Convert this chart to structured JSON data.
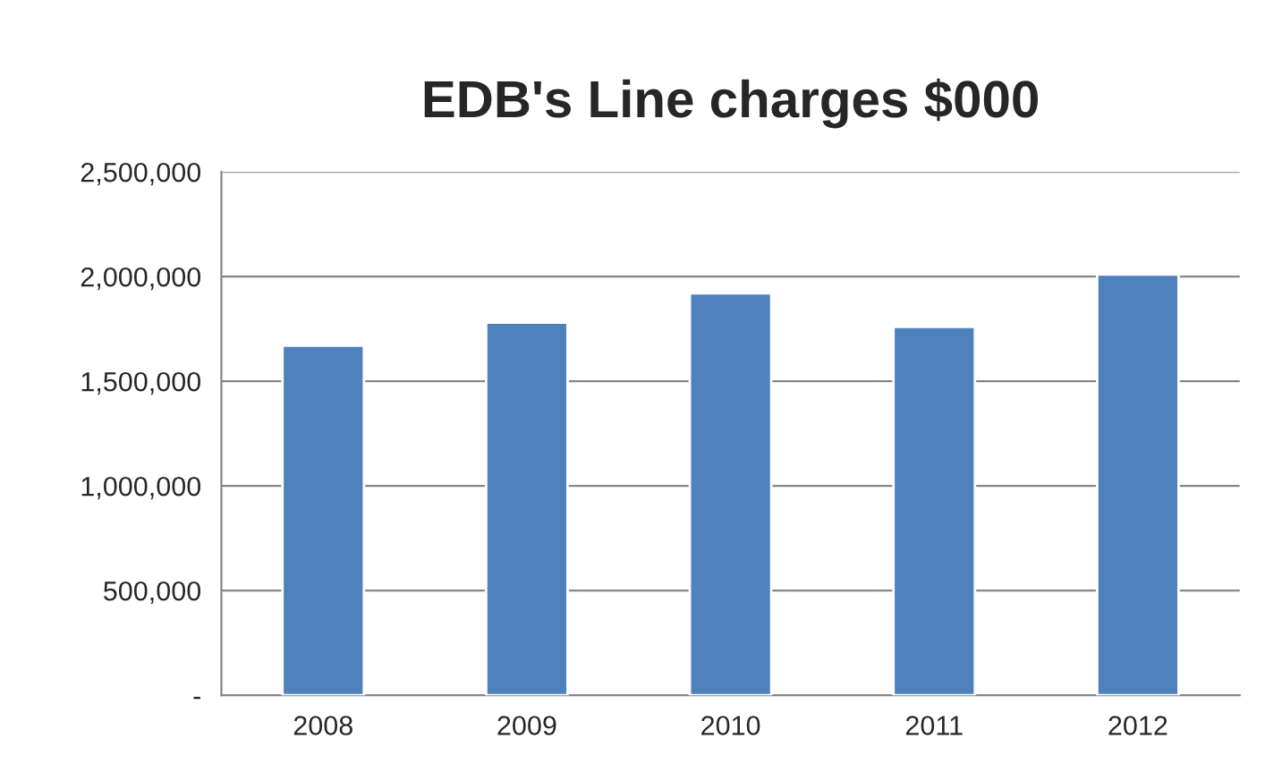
{
  "chart_data": {
    "type": "bar",
    "title": "EDB's Line charges $000",
    "categories": [
      "2008",
      "2009",
      "2010",
      "2011",
      "2012"
    ],
    "values": [
      1670000,
      1780000,
      1920000,
      1760000,
      2010000
    ],
    "color": "#4f81bd",
    "ylim": [
      0,
      2500000
    ],
    "yticks": [
      {
        "value": 0,
        "label": "-"
      },
      {
        "value": 500000,
        "label": "500,000"
      },
      {
        "value": 1000000,
        "label": "1,000,000"
      },
      {
        "value": 1500000,
        "label": "1,500,000"
      },
      {
        "value": 2000000,
        "label": "2,000,000"
      },
      {
        "value": 2500000,
        "label": "2,500,000"
      }
    ],
    "grid": "y",
    "legend": false
  }
}
